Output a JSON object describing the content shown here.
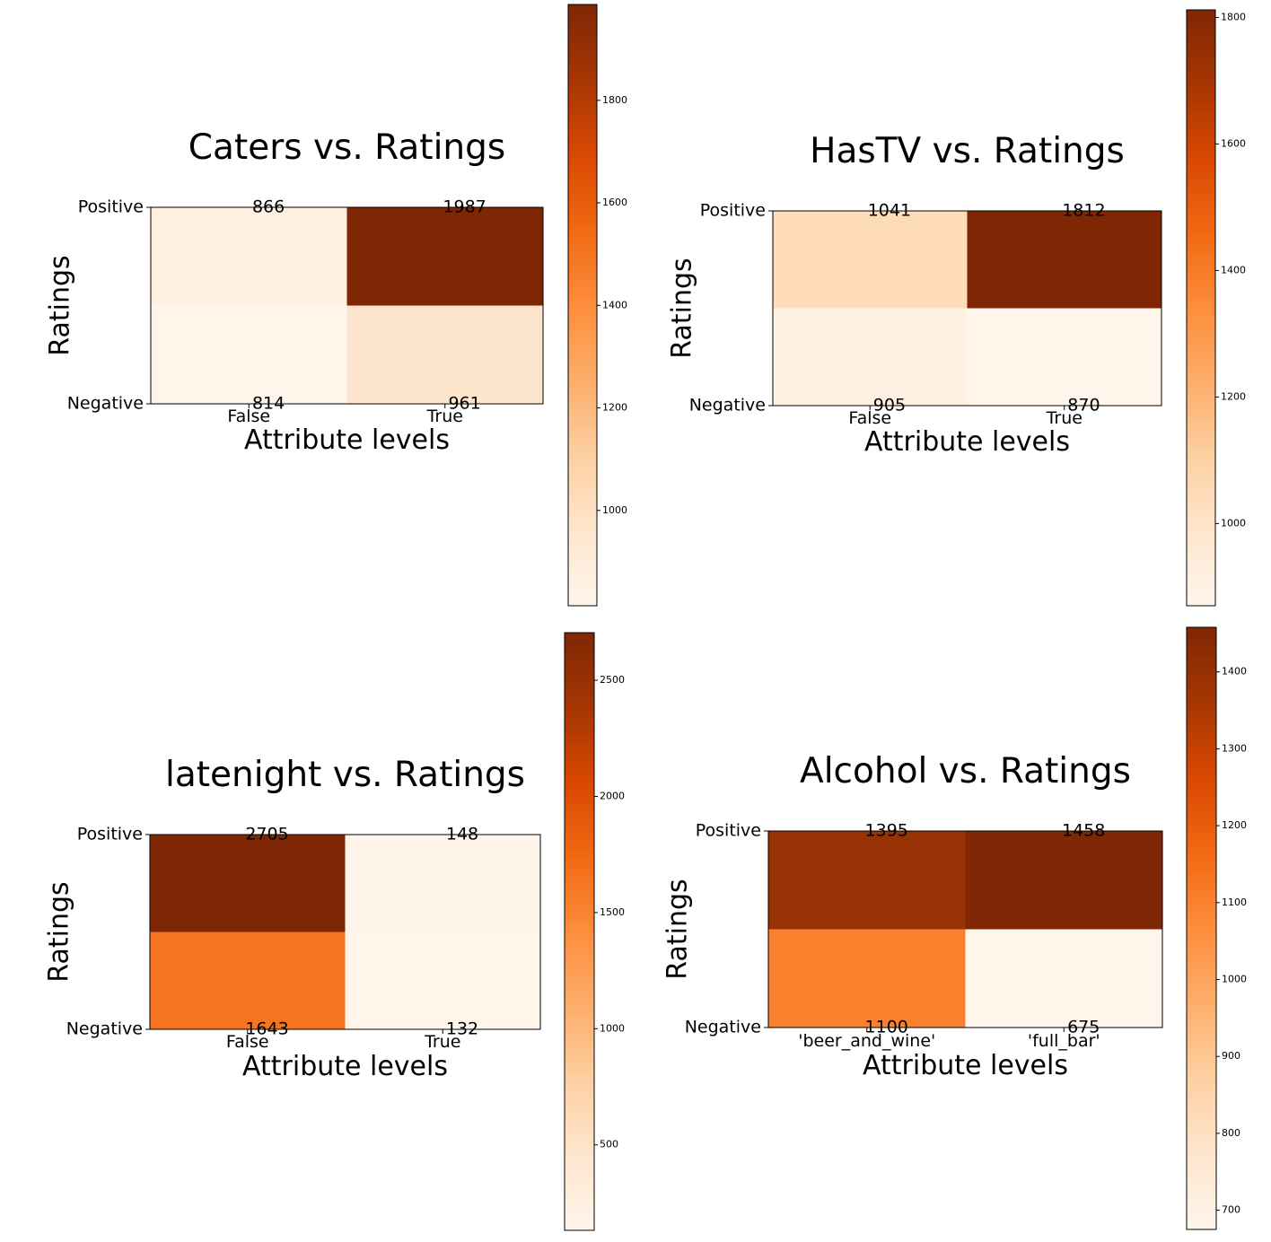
{
  "chart_data": [
    {
      "type": "heatmap",
      "title": "Caters vs. Ratings",
      "xlabel": "Attribute levels",
      "ylabel": "Ratings",
      "x_categories": [
        "False",
        "True"
      ],
      "y_categories": [
        "Positive",
        "Negative"
      ],
      "values": [
        [
          866,
          1987
        ],
        [
          814,
          961
        ]
      ],
      "colormap": "Oranges",
      "colorbar": {
        "range": [
          814,
          1987
        ],
        "ticks": [
          1000,
          1200,
          1400,
          1600,
          1800
        ]
      }
    },
    {
      "type": "heatmap",
      "title": "HasTV vs. Ratings",
      "xlabel": "Attribute levels",
      "ylabel": "Ratings",
      "x_categories": [
        "False",
        "True"
      ],
      "y_categories": [
        "Positive",
        "Negative"
      ],
      "values": [
        [
          1041,
          1812
        ],
        [
          905,
          870
        ]
      ],
      "colormap": "Oranges",
      "colorbar": {
        "range": [
          870,
          1812
        ],
        "ticks": [
          1000,
          1200,
          1400,
          1600,
          1800
        ]
      }
    },
    {
      "type": "heatmap",
      "title": "latenight vs. Ratings",
      "xlabel": "Attribute levels",
      "ylabel": "Ratings",
      "x_categories": [
        "False",
        "True"
      ],
      "y_categories": [
        "Positive",
        "Negative"
      ],
      "values": [
        [
          2705,
          148
        ],
        [
          1643,
          132
        ]
      ],
      "colormap": "Oranges",
      "colorbar": {
        "range": [
          132,
          2705
        ],
        "ticks": [
          500,
          1000,
          1500,
          2000,
          2500
        ]
      }
    },
    {
      "type": "heatmap",
      "title": "Alcohol vs. Ratings",
      "xlabel": "Attribute levels",
      "ylabel": "Ratings",
      "x_categories": [
        "'beer_and_wine'",
        "'full_bar'"
      ],
      "y_categories": [
        "Positive",
        "Negative"
      ],
      "values": [
        [
          1395,
          1458
        ],
        [
          1100,
          675
        ]
      ],
      "colormap": "Oranges",
      "colorbar": {
        "range": [
          675,
          1458
        ],
        "ticks": [
          700,
          800,
          900,
          1000,
          1100,
          1200,
          1300,
          1400
        ]
      }
    }
  ]
}
